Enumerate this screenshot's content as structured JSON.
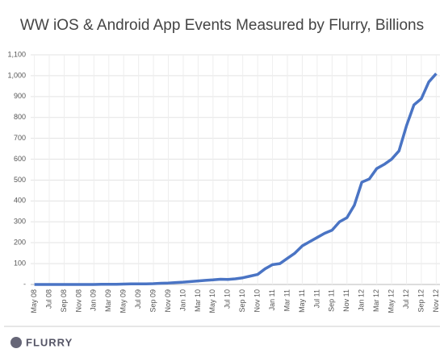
{
  "chart_data": {
    "type": "line",
    "title": "WW iOS & Android App Events Measured by Flurry, Billions",
    "logo": "FLURRY",
    "categories": [
      "May 08",
      null,
      "Jul 08",
      null,
      "Sep 08",
      null,
      "Nov 08",
      null,
      "Jan 09",
      null,
      "Mar 09",
      null,
      "May 09",
      null,
      "Jul 09",
      null,
      "Sep 09",
      null,
      "Nov 09",
      null,
      "Jan 10",
      null,
      "Mar 10",
      null,
      "May 10",
      null,
      "Jul 10",
      null,
      "Sep 10",
      null,
      "Nov 10",
      null,
      "Jan 11",
      null,
      "Mar 11",
      null,
      "May 11",
      null,
      "Jul 11",
      null,
      "Sep 11",
      null,
      "Nov 11",
      null,
      "Jan 12",
      null,
      "Mar 12",
      null,
      "May 12",
      null,
      "Jul 12",
      null,
      "Sep 12",
      null,
      "Nov 12"
    ],
    "values": [
      0,
      0,
      0,
      0,
      0,
      0,
      0,
      0,
      0,
      1,
      1,
      1,
      2,
      3,
      3,
      3,
      4,
      6,
      7,
      9,
      11,
      14,
      17,
      20,
      22,
      25,
      24,
      27,
      32,
      40,
      48,
      75,
      95,
      100,
      125,
      150,
      185,
      205,
      225,
      245,
      260,
      300,
      320,
      380,
      490,
      505,
      555,
      575,
      600,
      640,
      760,
      860,
      890,
      970,
      1010
    ],
    "color": "#4a74c4",
    "ylim": [
      0,
      1100
    ],
    "yticks": [
      {
        "value": 0,
        "label": "-"
      },
      100,
      200,
      300,
      400,
      500,
      600,
      700,
      800,
      900,
      {
        "value": 1000,
        "label": "1,000"
      },
      {
        "value": 1100,
        "label": "1,100"
      }
    ],
    "grid": true
  }
}
